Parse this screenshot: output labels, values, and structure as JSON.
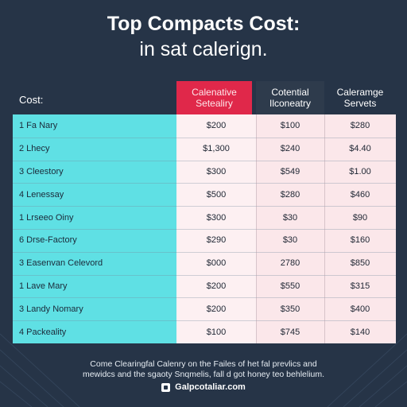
{
  "title": {
    "line1": "Top Compacts Cost:",
    "line2": "in sat calerign."
  },
  "chart_data": {
    "type": "table",
    "row_header_label": "Cost:",
    "columns": [
      [
        "Calenative",
        "Setealiry"
      ],
      [
        "Cotential",
        "Ilconeatry"
      ],
      [
        "Caleramge",
        "Servets"
      ]
    ],
    "rows": [
      {
        "label": "1 Fa Nary",
        "values": [
          "$200",
          "$100",
          "$280"
        ]
      },
      {
        "label": "2 Lhecy",
        "values": [
          "$1,300",
          "$240",
          "$4.40"
        ]
      },
      {
        "label": "3 Cleestory",
        "values": [
          "$300",
          "$549",
          "$1.00"
        ]
      },
      {
        "label": "4 Lenessay",
        "values": [
          "$500",
          "$280",
          "$460"
        ]
      },
      {
        "label": "1 Lrseeo Oiny",
        "values": [
          "$300",
          "$30",
          "$90"
        ]
      },
      {
        "label": "6 Drse-Factory",
        "values": [
          "$290",
          "$30",
          "$160"
        ]
      },
      {
        "label": "3 Easenvan Celevord",
        "values": [
          "$000",
          "2780",
          "$850"
        ]
      },
      {
        "label": "1 Lave Mary",
        "values": [
          "$200",
          "$550",
          "$315"
        ]
      },
      {
        "label": "3 Landy Nomary",
        "values": [
          "$200",
          "$350",
          "$400"
        ]
      },
      {
        "label": "4 Packeality",
        "values": [
          "$100",
          "$745",
          "$140"
        ]
      }
    ]
  },
  "footnote": {
    "line1": "Come Clearingfal Calenry on the Failes of het fal prevlics and",
    "line2": "mewidcs and the sgaoty Snqmelis, fall d got honey teo behlelium."
  },
  "source": {
    "text": "Galpcotaliar.com",
    "icon": "square-logo-icon"
  },
  "colors": {
    "background": "#263447",
    "accent": "#e0284a",
    "label_cells": "#5fe0e4",
    "value_cells": "#fbe7ea"
  }
}
